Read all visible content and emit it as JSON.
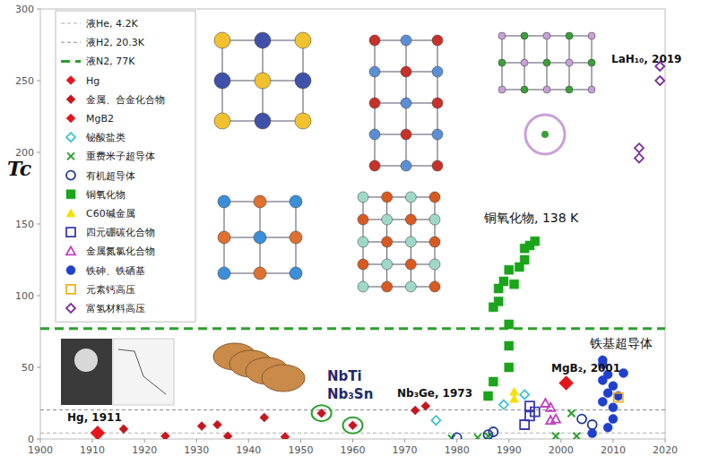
{
  "chart_data": {
    "type": "scatter",
    "y_label": "Tc",
    "xlim": [
      1900,
      2020
    ],
    "ylim": [
      0,
      300
    ],
    "xticks": [
      1900,
      1910,
      1920,
      1930,
      1940,
      1950,
      1960,
      1970,
      1980,
      1990,
      2000,
      2010,
      2020
    ],
    "yticks": [
      0,
      50,
      100,
      150,
      200,
      250,
      300
    ],
    "grid": false,
    "legend": "upper left",
    "annotations": [
      "Hg, 1911",
      "NbTi",
      "Nb₃Sn",
      "Nb₃Ge, 1973",
      "MgB₂, 2001",
      "铜氧化物, 138 K",
      "铁基超导体",
      "LaH₁₀, 2019"
    ],
    "series": [
      {
        "name": "液He, 4.2K",
        "type": "line",
        "color": "#b0b0b0",
        "line_style": "dashed",
        "x": [
          1900,
          2020
        ],
        "values": [
          4.2,
          4.2
        ]
      },
      {
        "name": "液H2, 20.3K",
        "type": "line",
        "color": "#8c8c8c",
        "line_style": "dashed",
        "x": [
          1900,
          2020
        ],
        "values": [
          20.3,
          20.3
        ]
      },
      {
        "name": "液N2, 77K",
        "type": "line",
        "color": "#2ca02c",
        "line_style": "bold-dashed",
        "x": [
          1900,
          2020
        ],
        "values": [
          77,
          77
        ]
      },
      {
        "name": "Hg",
        "type": "scatter",
        "color": "#e3161c",
        "marker": "diamond-large",
        "x": [
          1911
        ],
        "values": [
          4.2
        ]
      },
      {
        "name": "金属、合金化合物",
        "type": "scatter",
        "color": "#c4171f",
        "marker": "diamond",
        "x": [
          1916,
          1924,
          1931,
          1934,
          1936,
          1943,
          1947,
          1954,
          1960,
          1972,
          1974
        ],
        "values": [
          7,
          2,
          9,
          10,
          2,
          15,
          1.5,
          18,
          9.5,
          20,
          23
        ]
      },
      {
        "name": "MgB2",
        "type": "scatter",
        "color": "#e3161c",
        "marker": "diamond-large",
        "x": [
          2001
        ],
        "values": [
          39
        ]
      },
      {
        "name": "铋酸盐类",
        "type": "scatter",
        "color": "#3ec1d3",
        "marker": "diamond-open",
        "x": [
          1976,
          1989,
          1993
        ],
        "values": [
          13,
          24,
          31
        ]
      },
      {
        "name": "重费米子超导体",
        "type": "scatter",
        "color": "#2ca02c",
        "marker": "x",
        "x": [
          1979,
          1984,
          1986,
          1999,
          2002,
          2003
        ],
        "values": [
          0.5,
          1,
          2,
          2,
          18,
          2
        ]
      },
      {
        "name": "有机超导体",
        "type": "scatter",
        "color": "#1f3a93",
        "marker": "circle-open",
        "x": [
          1980,
          1986,
          1987,
          2004,
          2006
        ],
        "values": [
          1,
          3,
          5,
          14,
          10
        ]
      },
      {
        "name": "铜氧化物",
        "type": "scatter",
        "color": "#1aa51a",
        "marker": "square",
        "x": [
          1986,
          1987,
          1987,
          1988,
          1988,
          1989,
          1990,
          1990,
          1990,
          1990,
          1991,
          1992,
          1993,
          1993,
          1994,
          1995
        ],
        "values": [
          30,
          40,
          92,
          96,
          105,
          110,
          118,
          80,
          65,
          50,
          108,
          120,
          125,
          133,
          135,
          138
        ]
      },
      {
        "name": "C60碱金属",
        "type": "scatter",
        "color": "#f5e000",
        "marker": "triangle",
        "x": [
          1991,
          1991
        ],
        "values": [
          33,
          28
        ]
      },
      {
        "name": "四元硼碳化合物",
        "type": "scatter",
        "color": "#3a3ab0",
        "marker": "square-open",
        "x": [
          1993,
          1994,
          1994,
          1995
        ],
        "values": [
          10,
          16,
          23,
          19
        ]
      },
      {
        "name": "金属氮氯化合物",
        "type": "scatter",
        "color": "#c040c0",
        "marker": "triangle-open",
        "x": [
          1997,
          1998,
          1999,
          1998
        ],
        "values": [
          25,
          22,
          14,
          13
        ]
      },
      {
        "name": "铁砷、铁硒基",
        "type": "scatter",
        "color": "#1f3fd0",
        "marker": "circle",
        "x": [
          2006,
          2008,
          2008,
          2008,
          2008,
          2009,
          2009,
          2009,
          2010,
          2010,
          2010,
          2012,
          2011
        ],
        "values": [
          4,
          26,
          41,
          52,
          55,
          32,
          45,
          8,
          37,
          22,
          14,
          46,
          30
        ]
      },
      {
        "name": "元素钙高压",
        "type": "scatter",
        "color": "#f0b020",
        "marker": "square-open",
        "x": [
          2011
        ],
        "values": [
          29
        ]
      },
      {
        "name": "富氢材料高压",
        "type": "scatter",
        "color": "#7b2fa0",
        "marker": "diamond-open",
        "x": [
          2015,
          2015,
          2019,
          2019
        ],
        "values": [
          203,
          196,
          250,
          260
        ]
      }
    ]
  }
}
